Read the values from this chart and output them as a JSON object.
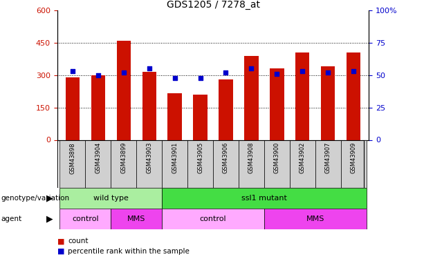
{
  "title": "GDS1205 / 7278_at",
  "samples": [
    "GSM43898",
    "GSM43904",
    "GSM43899",
    "GSM43903",
    "GSM43901",
    "GSM43905",
    "GSM43906",
    "GSM43908",
    "GSM43900",
    "GSM43902",
    "GSM43907",
    "GSM43909"
  ],
  "counts": [
    290,
    300,
    460,
    315,
    215,
    210,
    280,
    390,
    330,
    405,
    340,
    405
  ],
  "percentile_ranks": [
    53,
    50,
    52,
    55,
    48,
    48,
    52,
    55,
    51,
    53,
    52,
    53
  ],
  "ylim_left": [
    0,
    600
  ],
  "ylim_right": [
    0,
    100
  ],
  "yticks_left": [
    0,
    150,
    300,
    450,
    600
  ],
  "yticks_right": [
    0,
    25,
    50,
    75,
    100
  ],
  "bar_color": "#CC1100",
  "pct_color": "#0000CC",
  "genotype_groups": [
    {
      "label": "wild type",
      "start": 0,
      "end": 4,
      "color": "#AAEEA0"
    },
    {
      "label": "ssl1 mutant",
      "start": 4,
      "end": 12,
      "color": "#44DD44"
    }
  ],
  "agent_groups": [
    {
      "label": "control",
      "start": 0,
      "end": 2,
      "color": "#FFAAFF"
    },
    {
      "label": "MMS",
      "start": 2,
      "end": 4,
      "color": "#EE44EE"
    },
    {
      "label": "control",
      "start": 4,
      "end": 8,
      "color": "#FFAAFF"
    },
    {
      "label": "MMS",
      "start": 8,
      "end": 12,
      "color": "#EE44EE"
    }
  ],
  "xlabel_row1": "genotype/variation",
  "xlabel_row2": "agent",
  "legend_count": "count",
  "legend_pct": "percentile rank within the sample",
  "sample_label_color": "#D0D0D0"
}
